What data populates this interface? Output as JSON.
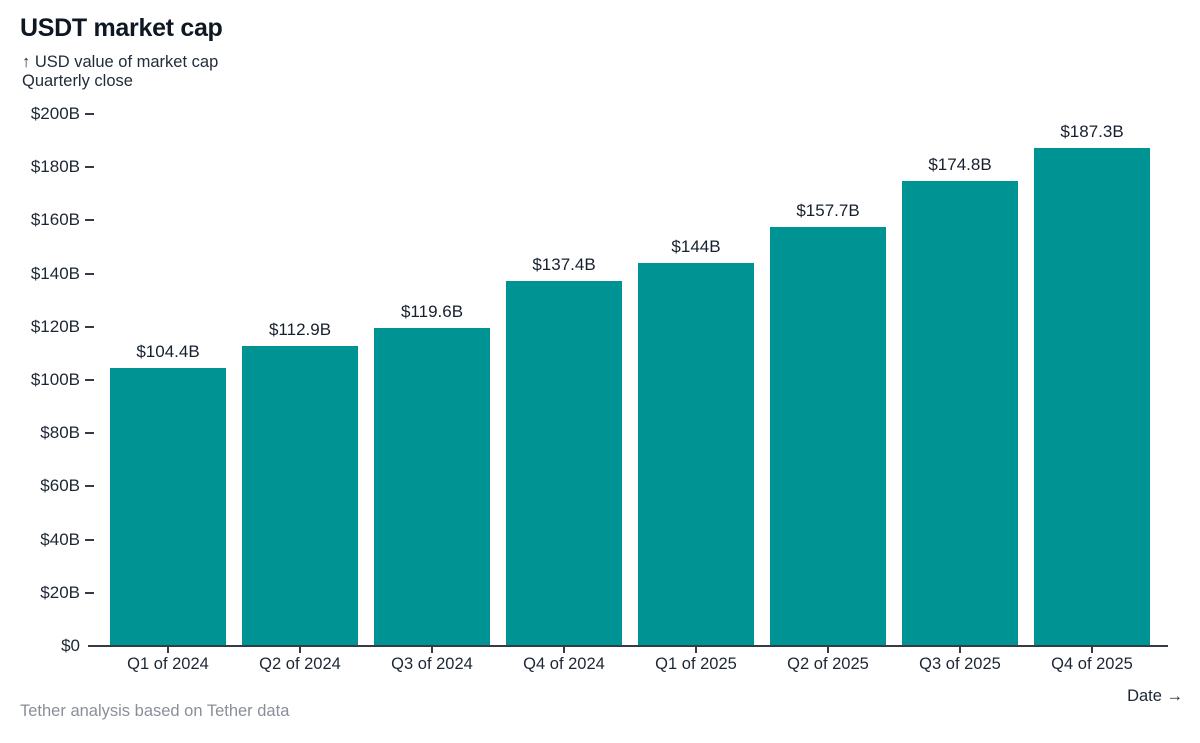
{
  "header": {
    "title": "USDT market cap",
    "subtitle_line1": "↑ USD value of market cap",
    "subtitle_line2": "Quarterly close"
  },
  "footer": {
    "caption": "Tether analysis based on Tether data",
    "x_axis_title": "Date →"
  },
  "chart_data": {
    "type": "bar",
    "title": "USDT market cap",
    "subtitle": "USD value of market cap — Quarterly close",
    "categories": [
      "Q1 of 2024",
      "Q2 of 2024",
      "Q3 of 2024",
      "Q4 of 2024",
      "Q1 of 2025",
      "Q2 of 2025",
      "Q3 of 2025",
      "Q4 of 2025"
    ],
    "values": [
      104.4,
      112.9,
      119.6,
      137.4,
      144,
      157.7,
      174.8,
      187.3
    ],
    "value_labels": [
      "$104.4B",
      "$112.9B",
      "$119.6B",
      "$137.4B",
      "$144B",
      "$157.7B",
      "$174.8B",
      "$187.3B"
    ],
    "xlabel": "Date",
    "ylabel": "USD value of market cap",
    "ylim": [
      0,
      200
    ],
    "ytick_values": [
      0,
      20,
      40,
      60,
      80,
      100,
      120,
      140,
      160,
      180,
      200
    ],
    "ytick_labels": [
      "$0",
      "$20B",
      "$40B",
      "$60B",
      "$80B",
      "$100B",
      "$120B",
      "$140B",
      "$160B",
      "$180B",
      "$200B"
    ],
    "bar_color": "#009394",
    "grid": false,
    "legend": false,
    "source": "Tether analysis based on Tether data"
  }
}
